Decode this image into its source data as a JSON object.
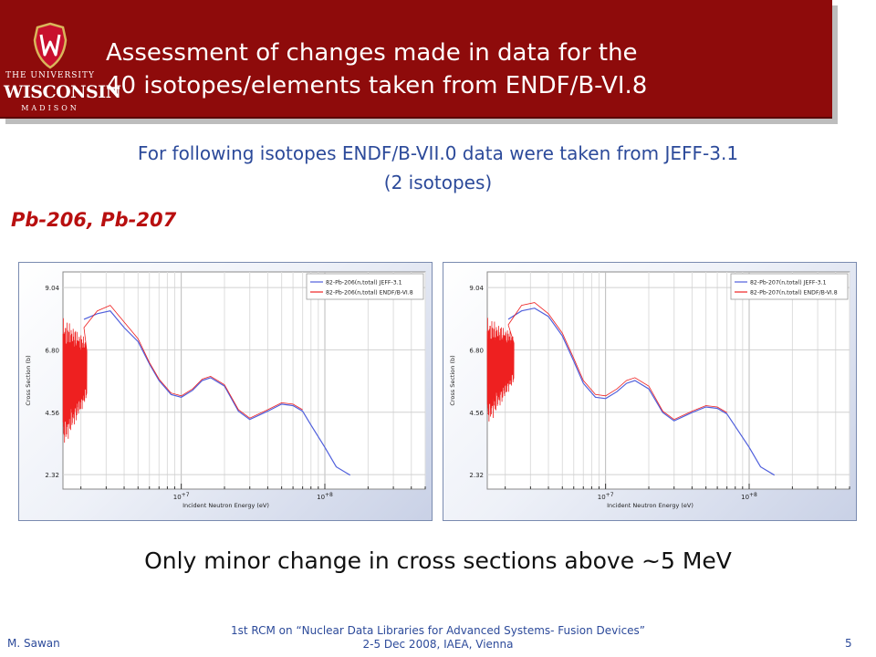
{
  "logo": {
    "line1": "THE UNIVERSITY",
    "line2": "WISCONSIN",
    "line3": "MADISON"
  },
  "slide": {
    "title_line1": "Assessment of changes made in data for the",
    "title_line2": "40 isotopes/elements taken from ENDF/B-VI.8",
    "subtitle_line1": "For following isotopes ENDF/B-VII.0 data were taken from JEFF-3.1",
    "subtitle_line2": "(2 isotopes)",
    "isotopes": "Pb-206, Pb-207",
    "conclusion": "Only minor change in cross sections above ~5 MeV"
  },
  "footer": {
    "author": "M. Sawan",
    "meeting_line1": "1st RCM on “Nuclear Data Libraries for Advanced Systems- Fusion Devices”",
    "meeting_line2": "2-5 Dec 2008, IAEA, Vienna",
    "page": "5"
  },
  "colors": {
    "jeff": "#4f5fdc",
    "endf": "#ee2020",
    "banner": "#8e0b0b"
  },
  "chart_data": [
    {
      "type": "line",
      "xlabel": "Incident Neutron Energy (eV)",
      "ylabel": "Cross Section (b)",
      "x_scale": "log",
      "xlim": [
        1500000,
        500000000
      ],
      "ylim": [
        1.8,
        9.6
      ],
      "x_tick_labels": [
        {
          "x": 10000000,
          "label": "10",
          "sup": "+7"
        },
        {
          "x": 100000000,
          "label": "10",
          "sup": "+8"
        }
      ],
      "y_ticks": [
        2.32,
        4.56,
        6.8,
        9.04
      ],
      "grid": true,
      "legend": "top-right",
      "series": [
        {
          "name": "82-Pb-206(n,total) JEFF-3.1",
          "color": "#4f5fdc",
          "x": [
            2100000,
            2600000,
            3200000,
            4000000,
            5000000,
            6000000,
            7000000,
            8500000,
            10000000,
            12000000,
            14000000,
            16000000,
            20000000,
            25000000,
            30000000,
            40000000,
            50000000,
            60000000,
            70000000,
            80000000,
            100000000,
            120000000,
            150000000
          ],
          "y": [
            7.9,
            8.1,
            8.2,
            7.6,
            7.1,
            6.3,
            5.7,
            5.2,
            5.1,
            5.35,
            5.7,
            5.8,
            5.5,
            4.6,
            4.3,
            4.6,
            4.85,
            4.8,
            4.6,
            4.1,
            3.3,
            2.6,
            2.3
          ]
        },
        {
          "name": "82-Pb-206(n,total) ENDF/B-VI.8",
          "color": "#ee2020",
          "x": [
            2100000,
            2600000,
            3200000,
            4000000,
            5000000,
            6000000,
            7000000,
            8500000,
            10000000,
            12000000,
            14000000,
            16000000,
            20000000,
            25000000,
            30000000,
            40000000,
            50000000,
            60000000,
            70000000
          ],
          "y": [
            7.6,
            8.2,
            8.4,
            7.8,
            7.2,
            6.35,
            5.75,
            5.25,
            5.15,
            5.4,
            5.75,
            5.85,
            5.55,
            4.65,
            4.35,
            4.65,
            4.9,
            4.85,
            4.65
          ],
          "oscillation": {
            "x": [
              1500000,
              2200000
            ],
            "y": [
              3.2,
              8.0
            ]
          }
        }
      ]
    },
    {
      "type": "line",
      "xlabel": "Incident Neutron Energy (eV)",
      "ylabel": "Cross Section (b)",
      "x_scale": "log",
      "xlim": [
        1500000,
        500000000
      ],
      "ylim": [
        1.8,
        9.6
      ],
      "x_tick_labels": [
        {
          "x": 10000000,
          "label": "10",
          "sup": "+7"
        },
        {
          "x": 100000000,
          "label": "10",
          "sup": "+8"
        }
      ],
      "y_ticks": [
        2.32,
        4.56,
        6.8,
        9.04
      ],
      "grid": true,
      "legend": "top-right",
      "series": [
        {
          "name": "82-Pb-207(n,total) JEFF-3.1",
          "color": "#4f5fdc",
          "x": [
            2100000,
            2600000,
            3200000,
            4000000,
            5000000,
            6000000,
            7000000,
            8500000,
            10000000,
            12000000,
            14000000,
            16000000,
            20000000,
            25000000,
            30000000,
            40000000,
            50000000,
            60000000,
            70000000,
            80000000,
            100000000,
            120000000,
            150000000
          ],
          "y": [
            7.9,
            8.2,
            8.3,
            8.0,
            7.3,
            6.4,
            5.6,
            5.1,
            5.05,
            5.3,
            5.6,
            5.7,
            5.4,
            4.55,
            4.25,
            4.55,
            4.75,
            4.7,
            4.5,
            4.05,
            3.3,
            2.6,
            2.3
          ]
        },
        {
          "name": "82-Pb-207(n,total) ENDF/B-VI.8",
          "color": "#ee2020",
          "x": [
            2100000,
            2600000,
            3200000,
            4000000,
            5000000,
            6000000,
            7000000,
            8500000,
            10000000,
            12000000,
            14000000,
            16000000,
            20000000,
            25000000,
            30000000,
            40000000,
            50000000,
            60000000,
            70000000
          ],
          "y": [
            7.7,
            8.4,
            8.5,
            8.1,
            7.4,
            6.5,
            5.7,
            5.2,
            5.15,
            5.4,
            5.7,
            5.8,
            5.5,
            4.6,
            4.3,
            4.6,
            4.8,
            4.75,
            4.55
          ],
          "oscillation": {
            "x": [
              1500000,
              2300000
            ],
            "y": [
              4.0,
              8.0
            ]
          }
        }
      ]
    }
  ]
}
